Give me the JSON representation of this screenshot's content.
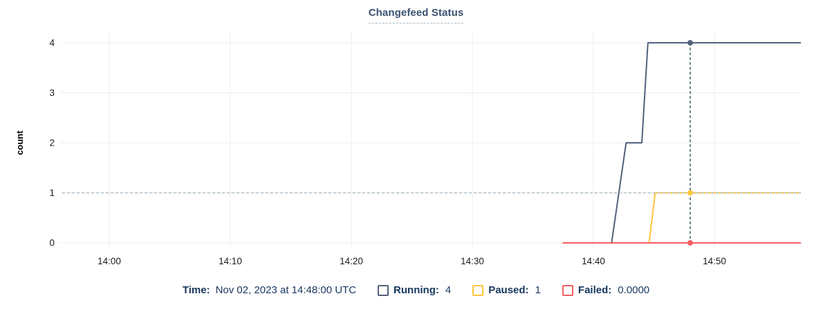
{
  "title": "Changefeed Status",
  "colors": {
    "title_text": "#3A516F",
    "footer_text": "#17375E",
    "tick_text": "#1C1C1C",
    "grid": "#ECECEC",
    "running": "#52627C",
    "paused": "#FFC53D",
    "failed": "#F25F63",
    "crosshair_vline": "#436369",
    "crosshair_hline": "#AEBFC9"
  },
  "chart_data": {
    "type": "line",
    "title": "Changefeed Status",
    "xlabel": "",
    "ylabel": "count",
    "ylim": [
      0,
      4
    ],
    "yticks": [
      0,
      1,
      2,
      3,
      4
    ],
    "grid": true,
    "legend_position": "bottom",
    "x_axis": {
      "unit": "minutes after 14:00 UTC",
      "visible_window": [
        -3.9,
        57.2
      ],
      "ticks": [
        {
          "t": 0,
          "label": "14:00"
        },
        {
          "t": 10,
          "label": "14:10"
        },
        {
          "t": 20,
          "label": "14:20"
        },
        {
          "t": 30,
          "label": "14:30"
        },
        {
          "t": 40,
          "label": "14:40"
        },
        {
          "t": 50,
          "label": "14:50"
        }
      ]
    },
    "series": [
      {
        "name": "Running",
        "color": "#52627C",
        "points": [
          [
            37.5,
            0
          ],
          [
            41.5,
            0
          ],
          [
            42.7,
            2
          ],
          [
            44.0,
            2
          ],
          [
            44.5,
            4
          ],
          [
            57.1,
            4
          ]
        ]
      },
      {
        "name": "Paused",
        "color": "#FFC53D",
        "points": [
          [
            37.5,
            0
          ],
          [
            44.6,
            0
          ],
          [
            45.1,
            1
          ],
          [
            57.1,
            1
          ]
        ]
      },
      {
        "name": "Failed",
        "color": "#F25F63",
        "points": [
          [
            37.5,
            0
          ],
          [
            57.1,
            0
          ]
        ]
      }
    ],
    "crosshair": {
      "t": 48,
      "time_label": "14:48",
      "hline_value": 1,
      "points": [
        {
          "series": "Running",
          "value": 4
        },
        {
          "series": "Paused",
          "value": 1
        },
        {
          "series": "Failed",
          "value": 0
        }
      ]
    }
  },
  "footer": {
    "time_label": "Time:",
    "time_value": "Nov 02, 2023 at 14:48:00 UTC",
    "legend": [
      {
        "name": "running",
        "label": "Running:",
        "value": "4",
        "color": "#52627C"
      },
      {
        "name": "paused",
        "label": "Paused:",
        "value": "1",
        "color": "#FFC53D"
      },
      {
        "name": "failed",
        "label": "Failed:",
        "value": "0.0000",
        "color": "#F25F63"
      }
    ]
  }
}
